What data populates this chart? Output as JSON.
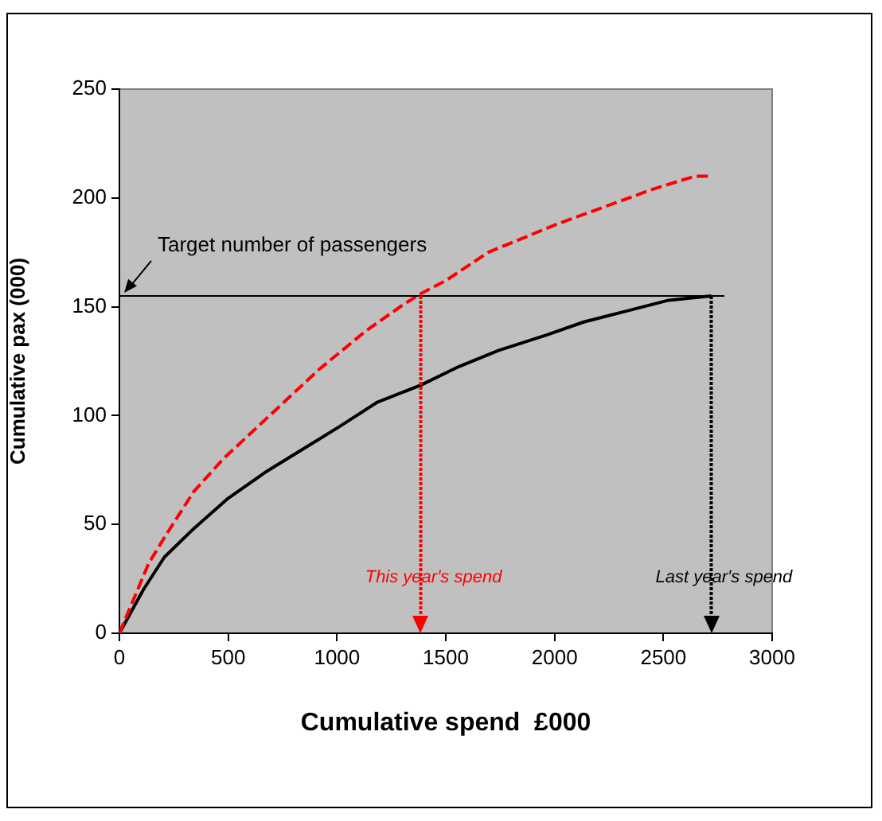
{
  "chart_data": {
    "type": "line",
    "xlabel": "Cumulative spend  £000",
    "ylabel": "Cumulative pax (000)",
    "xlim": [
      0,
      3000
    ],
    "xticks": [
      0,
      500,
      1000,
      1500,
      2000,
      2500,
      3000
    ],
    "ylim": [
      0,
      250
    ],
    "yticks": [
      0,
      50,
      100,
      150,
      200,
      250
    ],
    "grid": false,
    "legend": false,
    "marker": "none",
    "series": [
      {
        "color": "#ff0000",
        "line_style": "dashed",
        "x": [
          0,
          134,
          207,
          341,
          476,
          744,
          915,
          1134,
          1305,
          1385,
          1500,
          1695,
          1866,
          2012,
          2232,
          2451,
          2646,
          2707
        ],
        "values": [
          0,
          32,
          44,
          65,
          80,
          105,
          121,
          139,
          151,
          156,
          162,
          175,
          182,
          188,
          196,
          204,
          210,
          210
        ]
      },
      {
        "color": "#000000",
        "line_style": "solid",
        "x": [
          0,
          110,
          207,
          341,
          500,
          671,
          866,
          1012,
          1183,
          1385,
          1549,
          1744,
          1963,
          2134,
          2329,
          2524,
          2720
        ],
        "values": [
          0,
          20,
          35,
          48,
          62,
          74,
          86,
          95,
          106,
          114,
          122,
          130,
          137,
          143,
          148,
          153,
          155
        ]
      }
    ],
    "ref_lines": [
      {
        "axis": "y",
        "value": 155,
        "label": "Target number of passengers",
        "color": "#000000"
      },
      {
        "axis": "x",
        "value": 1385,
        "label": "This year's spend",
        "color": "#ff0000"
      },
      {
        "axis": "x",
        "value": 2720,
        "label": "Last year's spend",
        "color": "#000000"
      }
    ]
  }
}
